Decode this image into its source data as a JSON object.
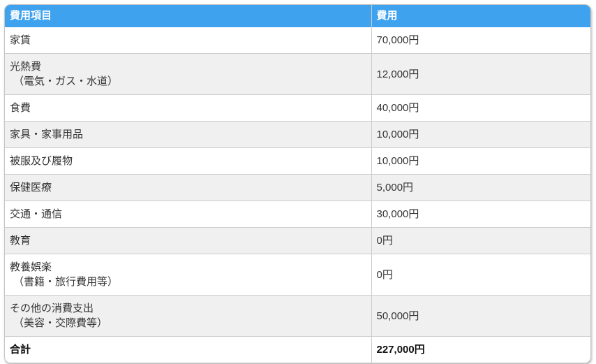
{
  "table": {
    "columns": {
      "item": "費用項目",
      "amount": "費用"
    },
    "rows": [
      {
        "item": "家賃",
        "amount": "70,000円"
      },
      {
        "item": "光熱費",
        "note": "（電気・ガス・水道）",
        "amount": "12,000円"
      },
      {
        "item": "食費",
        "amount": "40,000円"
      },
      {
        "item": "家具・家事用品",
        "amount": "10,000円"
      },
      {
        "item": "被服及び履物",
        "amount": "10,000円"
      },
      {
        "item": "保健医療",
        "amount": "5,000円"
      },
      {
        "item": "交通・通信",
        "amount": "30,000円"
      },
      {
        "item": "教育",
        "amount": "0円"
      },
      {
        "item": "教養娯楽",
        "note": "（書籍・旅行費用等）",
        "amount": "0円"
      },
      {
        "item": "その他の消費支出",
        "note": "（美容・交際費等）",
        "amount": "50,000円"
      },
      {
        "item": "合計",
        "amount": "227,000円"
      }
    ]
  },
  "colors": {
    "header_bg": "#3ea2ee",
    "header_text": "#ffffff",
    "row_alt_bg": "#f0f0f0",
    "border": "#cccccc",
    "body_text": "#333333"
  },
  "chart_data": {
    "type": "table",
    "title": "",
    "columns": [
      "費用項目",
      "費用"
    ],
    "rows": [
      [
        "家賃",
        "70,000円"
      ],
      [
        "光熱費（電気・ガス・水道）",
        "12,000円"
      ],
      [
        "食費",
        "40,000円"
      ],
      [
        "家具・家事用品",
        "10,000円"
      ],
      [
        "被服及び履物",
        "10,000円"
      ],
      [
        "保健医療",
        "5,000円"
      ],
      [
        "交通・通信",
        "30,000円"
      ],
      [
        "教育",
        "0円"
      ],
      [
        "教養娯楽（書籍・旅行費用等）",
        "0円"
      ],
      [
        "その他の消費支出（美容・交際費等）",
        "50,000円"
      ],
      [
        "合計",
        "227,000円"
      ]
    ],
    "values_yen": [
      70000,
      12000,
      40000,
      10000,
      10000,
      5000,
      30000,
      0,
      0,
      50000
    ],
    "total_yen": 227000
  }
}
